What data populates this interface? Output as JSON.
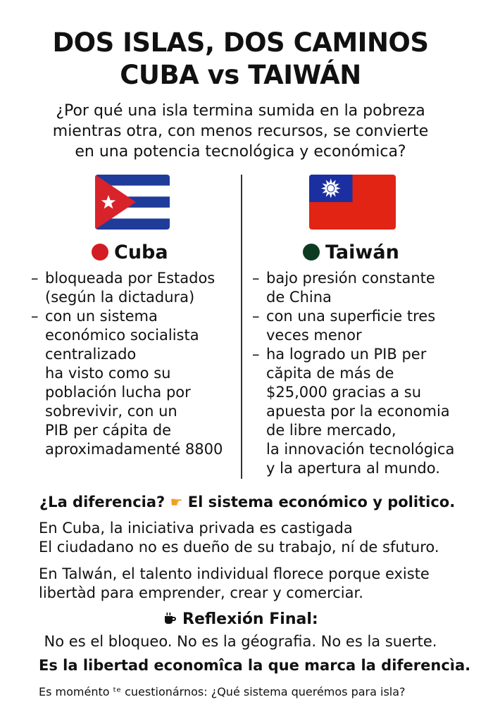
{
  "title": {
    "line1": "DOS ISLAS, DOS CAMINOS",
    "line2": "CUBA vs TAIWÁN"
  },
  "subtitle": {
    "line1": "¿Por qué una isla termina sumida en la pobreza",
    "line2": "mientras otra, con menos recursos, se convierte",
    "line3": "en una potencia tecnológica y económica?"
  },
  "colors": {
    "cuba_dot": "#d41c24",
    "taiwan_dot": "#0d3b22",
    "cuba_blue": "#1f3c9a",
    "cuba_red": "#d8232a",
    "taiwan_red": "#e12414",
    "taiwan_blue": "#1b2fa0",
    "hand": "#f0a020"
  },
  "cuba": {
    "name": "Cuba",
    "bullets": [
      [
        "bloqueada por Estados",
        "(según la dictadura)"
      ],
      [
        "con un sistema",
        "económico socialista",
        "centralizado",
        "ha visto como su",
        "población lucha por",
        "sobrevivir, con un",
        "PIB per cápita de",
        "aproximadamenté 8800"
      ]
    ]
  },
  "taiwan": {
    "name": "Taiwán",
    "bullets": [
      [
        "bajo presión constante",
        "de China"
      ],
      [
        "con una superficie tres",
        "veces menor"
      ],
      [
        "ha logrado un PIB per",
        "căpita de más de",
        "$25,000 gracias a su",
        "apuesta por la economia",
        "de libre mercado,",
        "la innovación tecnológica",
        "y la apertura al mundo."
      ]
    ]
  },
  "question": {
    "text": "¿La diferencia?",
    "icon": "pointing-hand-icon",
    "answer": "El sistema económico y politico."
  },
  "para_cuba": {
    "line1": "En Cuba, la iniciativa privada es castigada",
    "line2": "El ciudadano no es dueño de su trabajo, ní de sfuturo."
  },
  "para_taiwan": {
    "line1": "En Talwán, el talento individual florece porque existe",
    "line2": "libertàd para emprender, crear y comerciar."
  },
  "reflection": {
    "icon": "coffee-icon",
    "heading": "Reflexión Final:",
    "line": "No es el bloqueo. No es la géografia. No es la suerte."
  },
  "conclusion": "Es la libertad economîca la que marca la diferencìa.",
  "closing": "Es moménto ᵗᵉ cuestionárnos: ¿Qué sistema querémos para isla?"
}
